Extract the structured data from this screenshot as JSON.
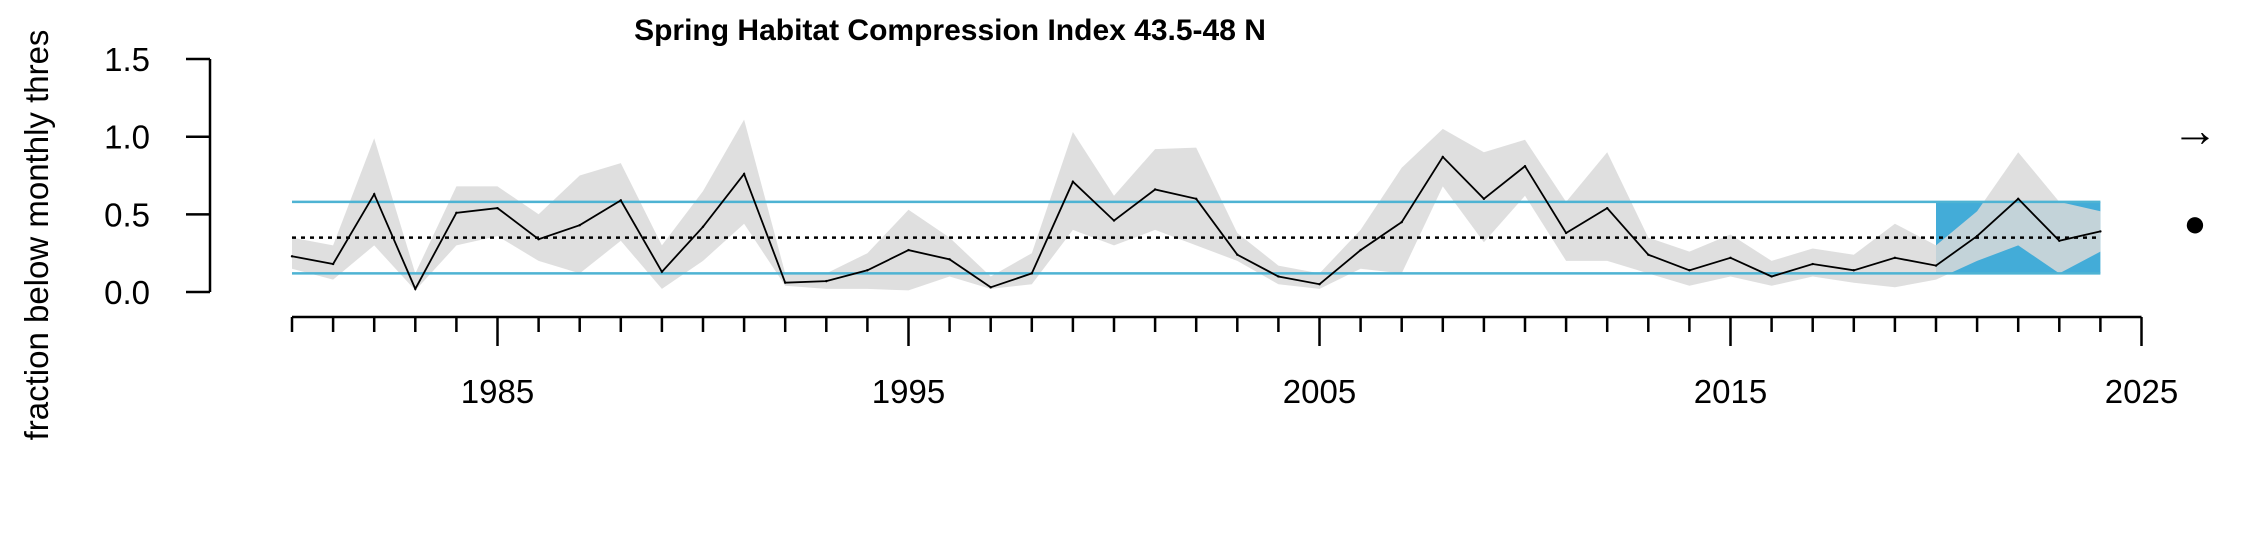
{
  "chart_data": {
    "type": "line",
    "title": "Spring Habitat Compression Index 43.5-48 N",
    "ylabel": "fraction below monthly thres",
    "xlabel": "",
    "ylim": [
      0,
      1.5
    ],
    "xlim": [
      1980,
      2025
    ],
    "yticks": [
      "0.0",
      "0.5",
      "1.0",
      "1.5"
    ],
    "xticks": [
      "1985",
      "1995",
      "2005",
      "2015",
      "2025"
    ],
    "series": [
      {
        "x": [
          1980,
          1981,
          1982,
          1983,
          1984,
          1985,
          1986,
          1987,
          1988,
          1989,
          1990,
          1991,
          1992,
          1993,
          1994,
          1995,
          1996,
          1997,
          1998,
          1999,
          2000,
          2001,
          2002,
          2003,
          2004,
          2005,
          2006,
          2007,
          2008,
          2009,
          2010,
          2011,
          2012,
          2013,
          2014,
          2015,
          2016,
          2017,
          2018,
          2019,
          2020,
          2021,
          2022,
          2023,
          2024
        ],
        "values": [
          0.23,
          0.18,
          0.63,
          0.02,
          0.51,
          0.54,
          0.34,
          0.43,
          0.59,
          0.13,
          0.42,
          0.76,
          0.06,
          0.07,
          0.14,
          0.27,
          0.21,
          0.03,
          0.12,
          0.71,
          0.46,
          0.66,
          0.6,
          0.24,
          0.1,
          0.05,
          0.27,
          0.45,
          0.87,
          0.6,
          0.81,
          0.38,
          0.54,
          0.24,
          0.14,
          0.22,
          0.1,
          0.18,
          0.14,
          0.22,
          0.17,
          0.36,
          0.6,
          0.33,
          0.39
        ],
        "lower": [
          0.15,
          0.08,
          0.3,
          0.01,
          0.3,
          0.36,
          0.2,
          0.12,
          0.33,
          0.02,
          0.2,
          0.44,
          0.04,
          0.02,
          0.02,
          0.01,
          0.1,
          0.02,
          0.05,
          0.4,
          0.3,
          0.4,
          0.3,
          0.2,
          0.05,
          0.02,
          0.15,
          0.12,
          0.68,
          0.32,
          0.62,
          0.2,
          0.2,
          0.12,
          0.04,
          0.1,
          0.04,
          0.1,
          0.06,
          0.03,
          0.08,
          0.2,
          0.3,
          0.12,
          0.26
        ],
        "upper": [
          0.35,
          0.3,
          0.99,
          0.12,
          0.68,
          0.68,
          0.5,
          0.75,
          0.83,
          0.3,
          0.65,
          1.11,
          0.12,
          0.12,
          0.25,
          0.53,
          0.35,
          0.1,
          0.25,
          1.03,
          0.62,
          0.92,
          0.93,
          0.38,
          0.17,
          0.12,
          0.4,
          0.8,
          1.05,
          0.9,
          0.98,
          0.58,
          0.9,
          0.35,
          0.26,
          0.37,
          0.2,
          0.28,
          0.24,
          0.44,
          0.3,
          0.52,
          0.9,
          0.58,
          0.52
        ]
      }
    ],
    "mean": 0.35,
    "upper_sd": 0.58,
    "lower_sd": 0.12,
    "recent_window": [
      2020,
      2024
    ],
    "trend_symbol": "→",
    "mean_symbol": "●",
    "colors": {
      "line": "#000000",
      "band": "#d9d9d9",
      "threshold": "#4eb3d3",
      "recent": "#43acd8"
    }
  }
}
